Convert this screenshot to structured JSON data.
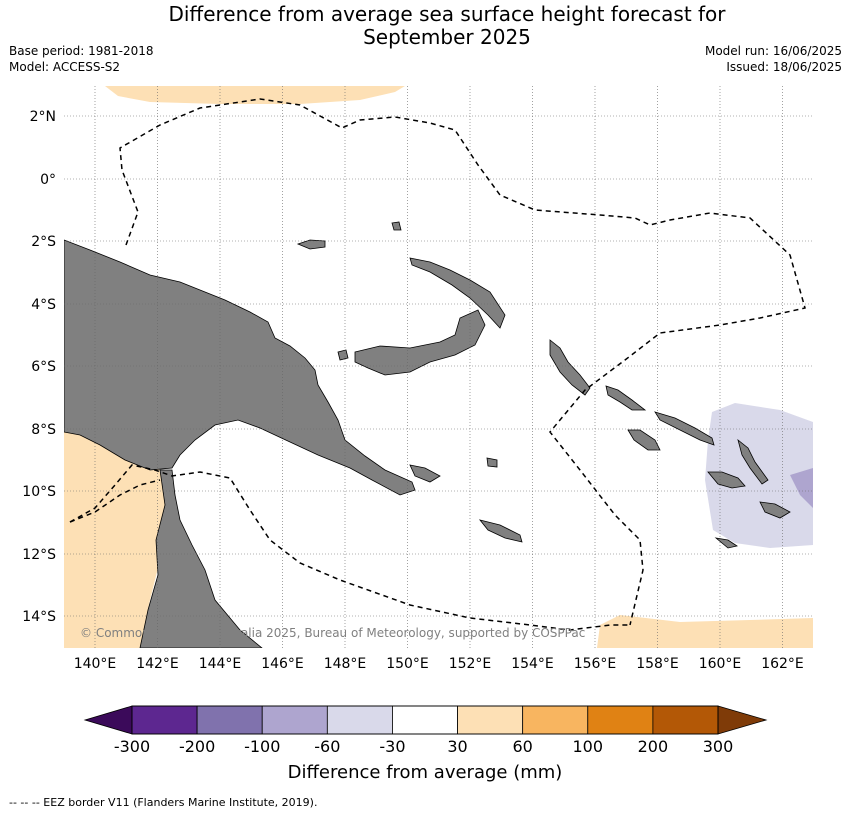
{
  "title_line1": "Difference from average sea surface height forecast for",
  "title_line2": "September 2025",
  "base_period": "Base period: 1981-2018",
  "model": "Model: ACCESS-S2",
  "model_run": "Model run: 16/06/2025",
  "issued": "Issued: 18/06/2025",
  "copyright": "© Commonwealth of Australia 2025, Bureau of Meteorology, supported by COSPPac",
  "footer_note": "-- -- -- EEZ border V11 (Flanders Marine Institute, 2019).",
  "map": {
    "lon_labels": [
      "140°E",
      "142°E",
      "144°E",
      "146°E",
      "148°E",
      "150°E",
      "152°E",
      "154°E",
      "156°E",
      "158°E",
      "160°E",
      "162°E"
    ],
    "lat_labels": [
      "2°N",
      "0°",
      "2°S",
      "4°S",
      "6°S",
      "8°S",
      "10°S",
      "12°S",
      "14°S"
    ],
    "land_color": "#808080",
    "ocean_color": "#ffffff"
  },
  "colorbar": {
    "label": "Difference from average (mm)",
    "tick_labels": [
      "-300",
      "-200",
      "-100",
      "-60",
      "-30",
      "30",
      "60",
      "100",
      "200",
      "300"
    ],
    "colors": [
      "#3b0a5a",
      "#5d2790",
      "#8072ad",
      "#aea5cf",
      "#d9d9ea",
      "#ffffff",
      "#fde0b5",
      "#f8b560",
      "#e08214",
      "#b35806",
      "#7f3b08"
    ]
  }
}
